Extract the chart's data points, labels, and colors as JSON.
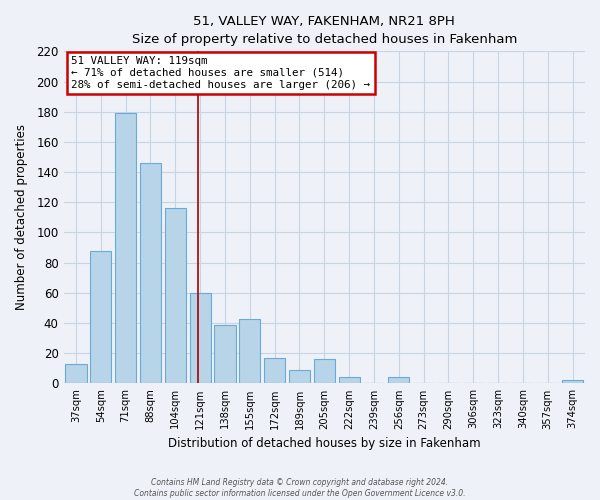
{
  "title": "51, VALLEY WAY, FAKENHAM, NR21 8PH",
  "subtitle": "Size of property relative to detached houses in Fakenham",
  "xlabel": "Distribution of detached houses by size in Fakenham",
  "ylabel": "Number of detached properties",
  "bar_labels": [
    "37sqm",
    "54sqm",
    "71sqm",
    "88sqm",
    "104sqm",
    "121sqm",
    "138sqm",
    "155sqm",
    "172sqm",
    "189sqm",
    "205sqm",
    "222sqm",
    "239sqm",
    "256sqm",
    "273sqm",
    "290sqm",
    "306sqm",
    "323sqm",
    "340sqm",
    "357sqm",
    "374sqm"
  ],
  "bar_values": [
    13,
    88,
    179,
    146,
    116,
    60,
    39,
    43,
    17,
    9,
    16,
    4,
    0,
    4,
    0,
    0,
    0,
    0,
    0,
    0,
    2
  ],
  "bar_color": "#b8d4e8",
  "bar_edge_color": "#6aaad4",
  "vline_color": "#aa0000",
  "vline_x": 5,
  "annotation_line1": "51 VALLEY WAY: 119sqm",
  "annotation_line2": "← 71% of detached houses are smaller (514)",
  "annotation_line3": "28% of semi-detached houses are larger (206) →",
  "annotation_box_facecolor": "#ffffff",
  "annotation_box_edgecolor": "#cc0000",
  "ylim": [
    0,
    220
  ],
  "yticks": [
    0,
    20,
    40,
    60,
    80,
    100,
    120,
    140,
    160,
    180,
    200,
    220
  ],
  "grid_color": "#c8d4e4",
  "background_color": "#eef2f8",
  "footer_line1": "Contains HM Land Registry data © Crown copyright and database right 2024.",
  "footer_line2": "Contains public sector information licensed under the Open Government Licence v3.0."
}
